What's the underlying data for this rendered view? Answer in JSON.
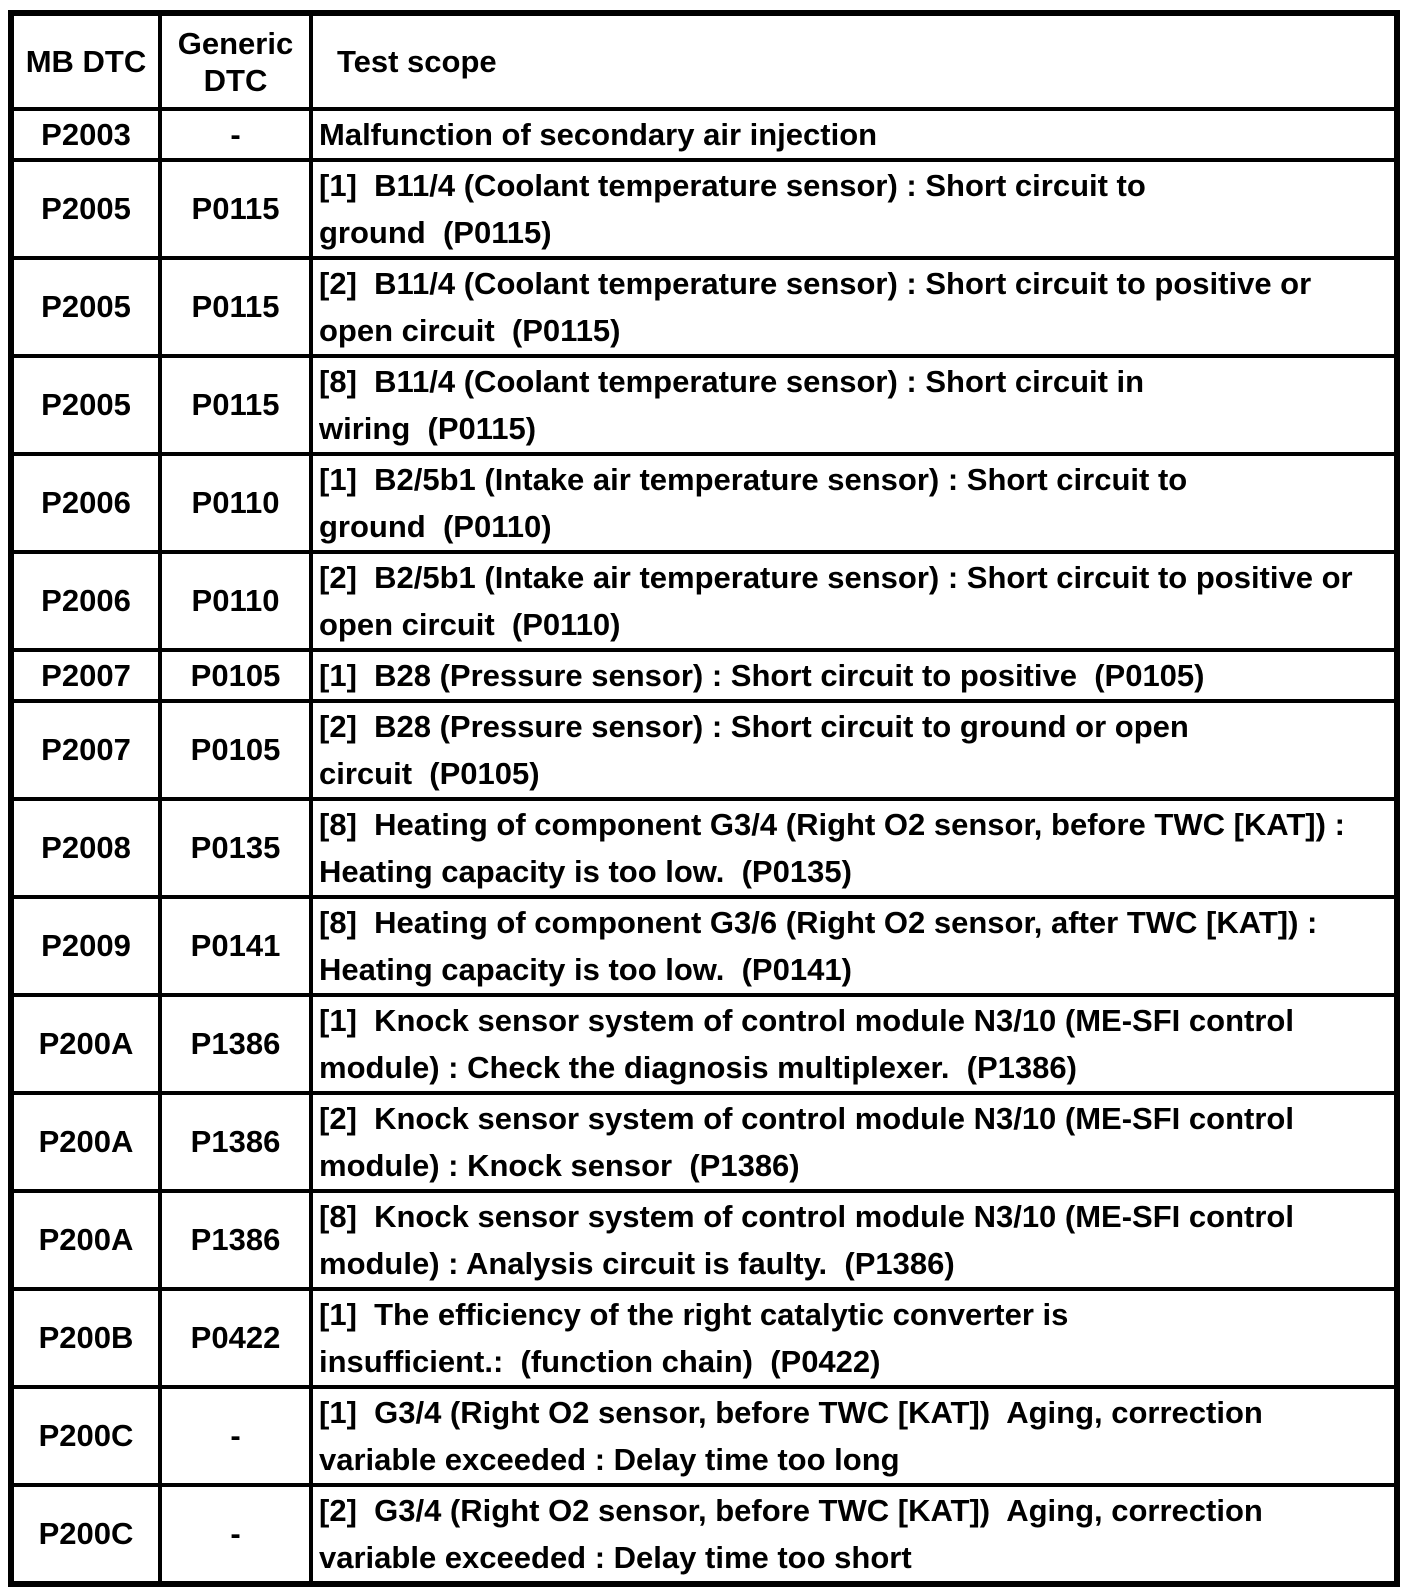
{
  "colors": {
    "background": "#ffffff",
    "border": "#000000",
    "text": "#000000"
  },
  "table": {
    "headers": [
      "MB DTC",
      "Generic DTC",
      "Test scope"
    ],
    "rows": [
      {
        "mb_dtc": "P2003",
        "generic_dtc": "-",
        "test_scope": "Malfunction of secondary air injection"
      },
      {
        "mb_dtc": "P2005",
        "generic_dtc": "P0115",
        "test_scope": "[1]  B11/4 (Coolant temperature sensor) : Short circuit to\nground  (P0115)"
      },
      {
        "mb_dtc": "P2005",
        "generic_dtc": "P0115",
        "test_scope": "[2]  B11/4 (Coolant temperature sensor) : Short circuit to positive or\nopen circuit  (P0115)"
      },
      {
        "mb_dtc": "P2005",
        "generic_dtc": "P0115",
        "test_scope": "[8]  B11/4 (Coolant temperature sensor) : Short circuit in\nwiring  (P0115)"
      },
      {
        "mb_dtc": "P2006",
        "generic_dtc": "P0110",
        "test_scope": "[1]  B2/5b1 (Intake air temperature sensor) : Short circuit to\nground  (P0110)"
      },
      {
        "mb_dtc": "P2006",
        "generic_dtc": "P0110",
        "test_scope": "[2]  B2/5b1 (Intake air temperature sensor) : Short circuit to positive or\nopen circuit  (P0110)"
      },
      {
        "mb_dtc": "P2007",
        "generic_dtc": "P0105",
        "test_scope": "[1]  B28 (Pressure sensor) : Short circuit to positive  (P0105)"
      },
      {
        "mb_dtc": "P2007",
        "generic_dtc": "P0105",
        "test_scope": "[2]  B28 (Pressure sensor) : Short circuit to ground or open\ncircuit  (P0105)"
      },
      {
        "mb_dtc": "P2008",
        "generic_dtc": "P0135",
        "test_scope": "[8]  Heating of component G3/4 (Right O2 sensor, before TWC [KAT]) :\nHeating capacity is too low.  (P0135)"
      },
      {
        "mb_dtc": "P2009",
        "generic_dtc": "P0141",
        "test_scope": "[8]  Heating of component G3/6 (Right O2 sensor, after TWC [KAT]) :\nHeating capacity is too low.  (P0141)"
      },
      {
        "mb_dtc": "P200A",
        "generic_dtc": "P1386",
        "test_scope": "[1]  Knock sensor system of control module N3/10 (ME-SFI control\nmodule) : Check the diagnosis multiplexer.  (P1386)"
      },
      {
        "mb_dtc": "P200A",
        "generic_dtc": "P1386",
        "test_scope": "[2]  Knock sensor system of control module N3/10 (ME-SFI control\nmodule) : Knock sensor  (P1386)"
      },
      {
        "mb_dtc": "P200A",
        "generic_dtc": "P1386",
        "test_scope": "[8]  Knock sensor system of control module N3/10 (ME-SFI control\nmodule) : Analysis circuit is faulty.  (P1386)"
      },
      {
        "mb_dtc": "P200B",
        "generic_dtc": "P0422",
        "test_scope": "[1]  The efficiency of the right catalytic converter is\ninsufficient.:  (function chain)  (P0422)"
      },
      {
        "mb_dtc": "P200C",
        "generic_dtc": "-",
        "test_scope": "[1]  G3/4 (Right O2 sensor, before TWC [KAT])  Aging, correction\nvariable exceeded : Delay time too long"
      },
      {
        "mb_dtc": "P200C",
        "generic_dtc": "-",
        "test_scope": "[2]  G3/4 (Right O2 sensor, before TWC [KAT])  Aging, correction\nvariable exceeded : Delay time too short"
      }
    ]
  }
}
